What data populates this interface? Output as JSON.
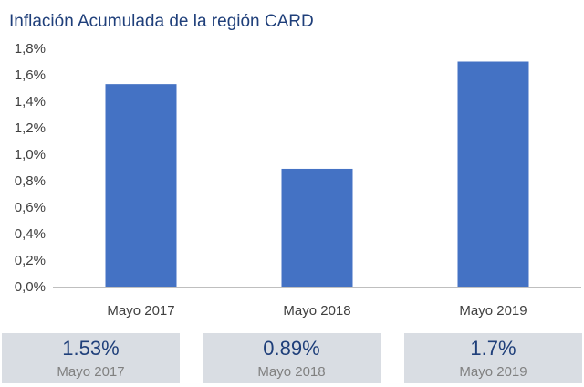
{
  "title": "Inflación Acumulada de la región CARD",
  "chart_data": {
    "type": "bar",
    "title": "Inflación Acumulada de la región CARD",
    "categories": [
      "Mayo 2017",
      "Mayo 2018",
      "Mayo 2019"
    ],
    "values": [
      1.53,
      0.89,
      1.7
    ],
    "unit": "%",
    "ylim": [
      0,
      1.8
    ],
    "yticks": [
      "0,0%",
      "0,2%",
      "0,4%",
      "0,6%",
      "0,8%",
      "1,0%",
      "1,2%",
      "1,4%",
      "1,6%",
      "1,8%"
    ],
    "xlabel": "",
    "ylabel": "",
    "grid": false,
    "bar_color": "#4472c4"
  },
  "cards": [
    {
      "value": "1.53%",
      "label": "Mayo 2017"
    },
    {
      "value": "0.89%",
      "label": "Mayo 2018"
    },
    {
      "value": "1.7%",
      "label": "Mayo 2019"
    }
  ],
  "colors": {
    "title": "#1f3f7a",
    "card_bg": "#d9dde3",
    "axis": "#bfbfbf"
  }
}
